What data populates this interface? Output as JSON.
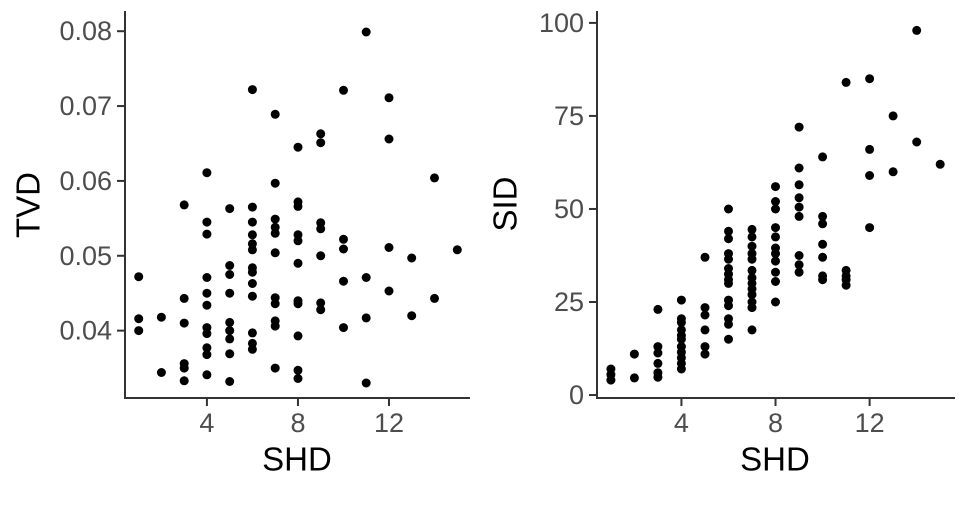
{
  "figure": {
    "background": "#ffffff",
    "style": {
      "point_color": "#000000",
      "point_radius": 4.5,
      "axis_line_color": "#333333",
      "tick_color": "#333333",
      "tick_label_color": "#4d4d4d",
      "axis_title_color": "#000000"
    }
  },
  "chart_data": [
    {
      "type": "scatter",
      "title": "",
      "xlabel": "SHD",
      "ylabel": "TVD",
      "x_ticks": [
        4,
        8,
        12
      ],
      "x_tick_labels": [
        "4",
        "8",
        "12"
      ],
      "y_ticks": [
        0.04,
        0.05,
        0.06,
        0.07,
        0.08
      ],
      "y_tick_labels": [
        "0.04",
        "0.05",
        "0.06",
        "0.07",
        "0.08"
      ],
      "xlim": [
        0.4,
        15.56
      ],
      "ylim": [
        0.031,
        0.0827
      ],
      "grid": false,
      "legend_position": "none",
      "points": [
        [
          1,
          0.0472
        ],
        [
          1,
          0.0416
        ],
        [
          1,
          0.04
        ],
        [
          2,
          0.0418
        ],
        [
          2,
          0.0344
        ],
        [
          3,
          0.0568
        ],
        [
          3,
          0.0443
        ],
        [
          3,
          0.041
        ],
        [
          3,
          0.0356
        ],
        [
          3,
          0.035
        ],
        [
          3,
          0.0333
        ],
        [
          4,
          0.0611
        ],
        [
          4,
          0.0545
        ],
        [
          4,
          0.0529
        ],
        [
          4,
          0.0471
        ],
        [
          4,
          0.045
        ],
        [
          4,
          0.0434
        ],
        [
          4,
          0.0404
        ],
        [
          4,
          0.0396
        ],
        [
          4,
          0.0377
        ],
        [
          4,
          0.0368
        ],
        [
          4,
          0.0341
        ],
        [
          5,
          0.0563
        ],
        [
          5,
          0.0487
        ],
        [
          5,
          0.0475
        ],
        [
          5,
          0.045
        ],
        [
          5,
          0.0411
        ],
        [
          5,
          0.04
        ],
        [
          5,
          0.0389
        ],
        [
          5,
          0.0369
        ],
        [
          5,
          0.0332
        ],
        [
          6,
          0.0722
        ],
        [
          6,
          0.0565
        ],
        [
          6,
          0.0545
        ],
        [
          6,
          0.0528
        ],
        [
          6,
          0.0516
        ],
        [
          6,
          0.0508
        ],
        [
          6,
          0.0484
        ],
        [
          6,
          0.0478
        ],
        [
          6,
          0.0463
        ],
        [
          6,
          0.0446
        ],
        [
          6,
          0.0397
        ],
        [
          6,
          0.0383
        ],
        [
          6,
          0.0375
        ],
        [
          7,
          0.0689
        ],
        [
          7,
          0.0597
        ],
        [
          7,
          0.0549
        ],
        [
          7,
          0.0538
        ],
        [
          7,
          0.053
        ],
        [
          7,
          0.0504
        ],
        [
          7,
          0.0444
        ],
        [
          7,
          0.0436
        ],
        [
          7,
          0.0413
        ],
        [
          7,
          0.0406
        ],
        [
          7,
          0.035
        ],
        [
          8,
          0.0645
        ],
        [
          8,
          0.0572
        ],
        [
          8,
          0.0566
        ],
        [
          8,
          0.0528
        ],
        [
          8,
          0.052
        ],
        [
          8,
          0.049
        ],
        [
          8,
          0.044
        ],
        [
          8,
          0.0436
        ],
        [
          8,
          0.0393
        ],
        [
          8,
          0.0347
        ],
        [
          8,
          0.0336
        ],
        [
          9,
          0.0663
        ],
        [
          9,
          0.0651
        ],
        [
          9,
          0.0544
        ],
        [
          9,
          0.0536
        ],
        [
          9,
          0.05
        ],
        [
          9,
          0.0437
        ],
        [
          9,
          0.0428
        ],
        [
          10,
          0.0721
        ],
        [
          10,
          0.0522
        ],
        [
          10,
          0.0509
        ],
        [
          10,
          0.0466
        ],
        [
          10,
          0.0404
        ],
        [
          11,
          0.0799
        ],
        [
          11,
          0.0471
        ],
        [
          11,
          0.0417
        ],
        [
          11,
          0.033
        ],
        [
          12,
          0.0711
        ],
        [
          12,
          0.0656
        ],
        [
          12,
          0.0511
        ],
        [
          12,
          0.0453
        ],
        [
          13,
          0.0497
        ],
        [
          13,
          0.042
        ],
        [
          14,
          0.0604
        ],
        [
          14,
          0.0443
        ],
        [
          15,
          0.0508
        ]
      ]
    },
    {
      "type": "scatter",
      "title": "",
      "xlabel": "SHD",
      "ylabel": "SID",
      "x_ticks": [
        4,
        8,
        12
      ],
      "x_tick_labels": [
        "4",
        "8",
        "12"
      ],
      "y_ticks": [
        0,
        25,
        50,
        75,
        100
      ],
      "y_tick_labels": [
        "0",
        "25",
        "50",
        "75",
        "100"
      ],
      "xlim": [
        0.41,
        15.63
      ],
      "ylim": [
        -0.8,
        103.2
      ],
      "grid": false,
      "legend_position": "none",
      "points": [
        [
          1,
          7
        ],
        [
          1,
          5.5
        ],
        [
          1,
          4
        ],
        [
          2,
          11
        ],
        [
          2,
          4.6
        ],
        [
          3,
          23
        ],
        [
          3,
          13
        ],
        [
          3,
          11.3
        ],
        [
          3,
          8.5
        ],
        [
          3,
          6
        ],
        [
          3,
          4.8
        ],
        [
          4,
          25.5
        ],
        [
          4,
          20.5
        ],
        [
          4,
          19.5
        ],
        [
          4,
          17.5
        ],
        [
          4,
          16
        ],
        [
          4,
          15
        ],
        [
          4,
          13
        ],
        [
          4,
          11.5
        ],
        [
          4,
          10
        ],
        [
          4,
          8.5
        ],
        [
          4,
          7
        ],
        [
          5,
          37
        ],
        [
          5,
          23.5
        ],
        [
          5,
          21.5
        ],
        [
          5,
          17.5
        ],
        [
          5,
          13
        ],
        [
          5,
          11
        ],
        [
          6,
          50
        ],
        [
          6,
          44
        ],
        [
          6,
          42
        ],
        [
          6,
          38
        ],
        [
          6,
          36.5
        ],
        [
          6,
          34
        ],
        [
          6,
          32.5
        ],
        [
          6,
          31
        ],
        [
          6,
          30
        ],
        [
          6,
          25.5
        ],
        [
          6,
          24
        ],
        [
          6,
          20.5
        ],
        [
          6,
          19
        ],
        [
          6,
          15
        ],
        [
          7,
          44.5
        ],
        [
          7,
          42.5
        ],
        [
          7,
          40
        ],
        [
          7,
          38
        ],
        [
          7,
          36.5
        ],
        [
          7,
          33.5
        ],
        [
          7,
          31.5
        ],
        [
          7,
          30
        ],
        [
          7,
          28.5
        ],
        [
          7,
          27
        ],
        [
          7,
          25
        ],
        [
          7,
          23.5
        ],
        [
          7,
          17.5
        ],
        [
          8,
          56
        ],
        [
          8,
          52
        ],
        [
          8,
          50
        ],
        [
          8,
          45
        ],
        [
          8,
          42.5
        ],
        [
          8,
          39.5
        ],
        [
          8,
          38
        ],
        [
          8,
          36
        ],
        [
          8,
          33
        ],
        [
          8,
          30.5
        ],
        [
          8,
          25
        ],
        [
          9,
          72
        ],
        [
          9,
          61
        ],
        [
          9,
          56.5
        ],
        [
          9,
          53
        ],
        [
          9,
          50.5
        ],
        [
          9,
          48
        ],
        [
          9,
          37.5
        ],
        [
          9,
          35
        ],
        [
          9,
          33
        ],
        [
          10,
          64
        ],
        [
          10,
          48
        ],
        [
          10,
          46
        ],
        [
          10,
          40.5
        ],
        [
          10,
          37
        ],
        [
          10,
          32
        ],
        [
          10,
          31
        ],
        [
          11,
          84
        ],
        [
          11,
          33.5
        ],
        [
          11,
          32
        ],
        [
          11,
          31
        ],
        [
          11,
          29.5
        ],
        [
          12,
          85
        ],
        [
          12,
          66
        ],
        [
          12,
          59
        ],
        [
          12,
          45
        ],
        [
          13,
          75
        ],
        [
          13,
          60
        ],
        [
          14,
          98
        ],
        [
          14,
          68
        ],
        [
          15,
          62
        ]
      ]
    }
  ]
}
